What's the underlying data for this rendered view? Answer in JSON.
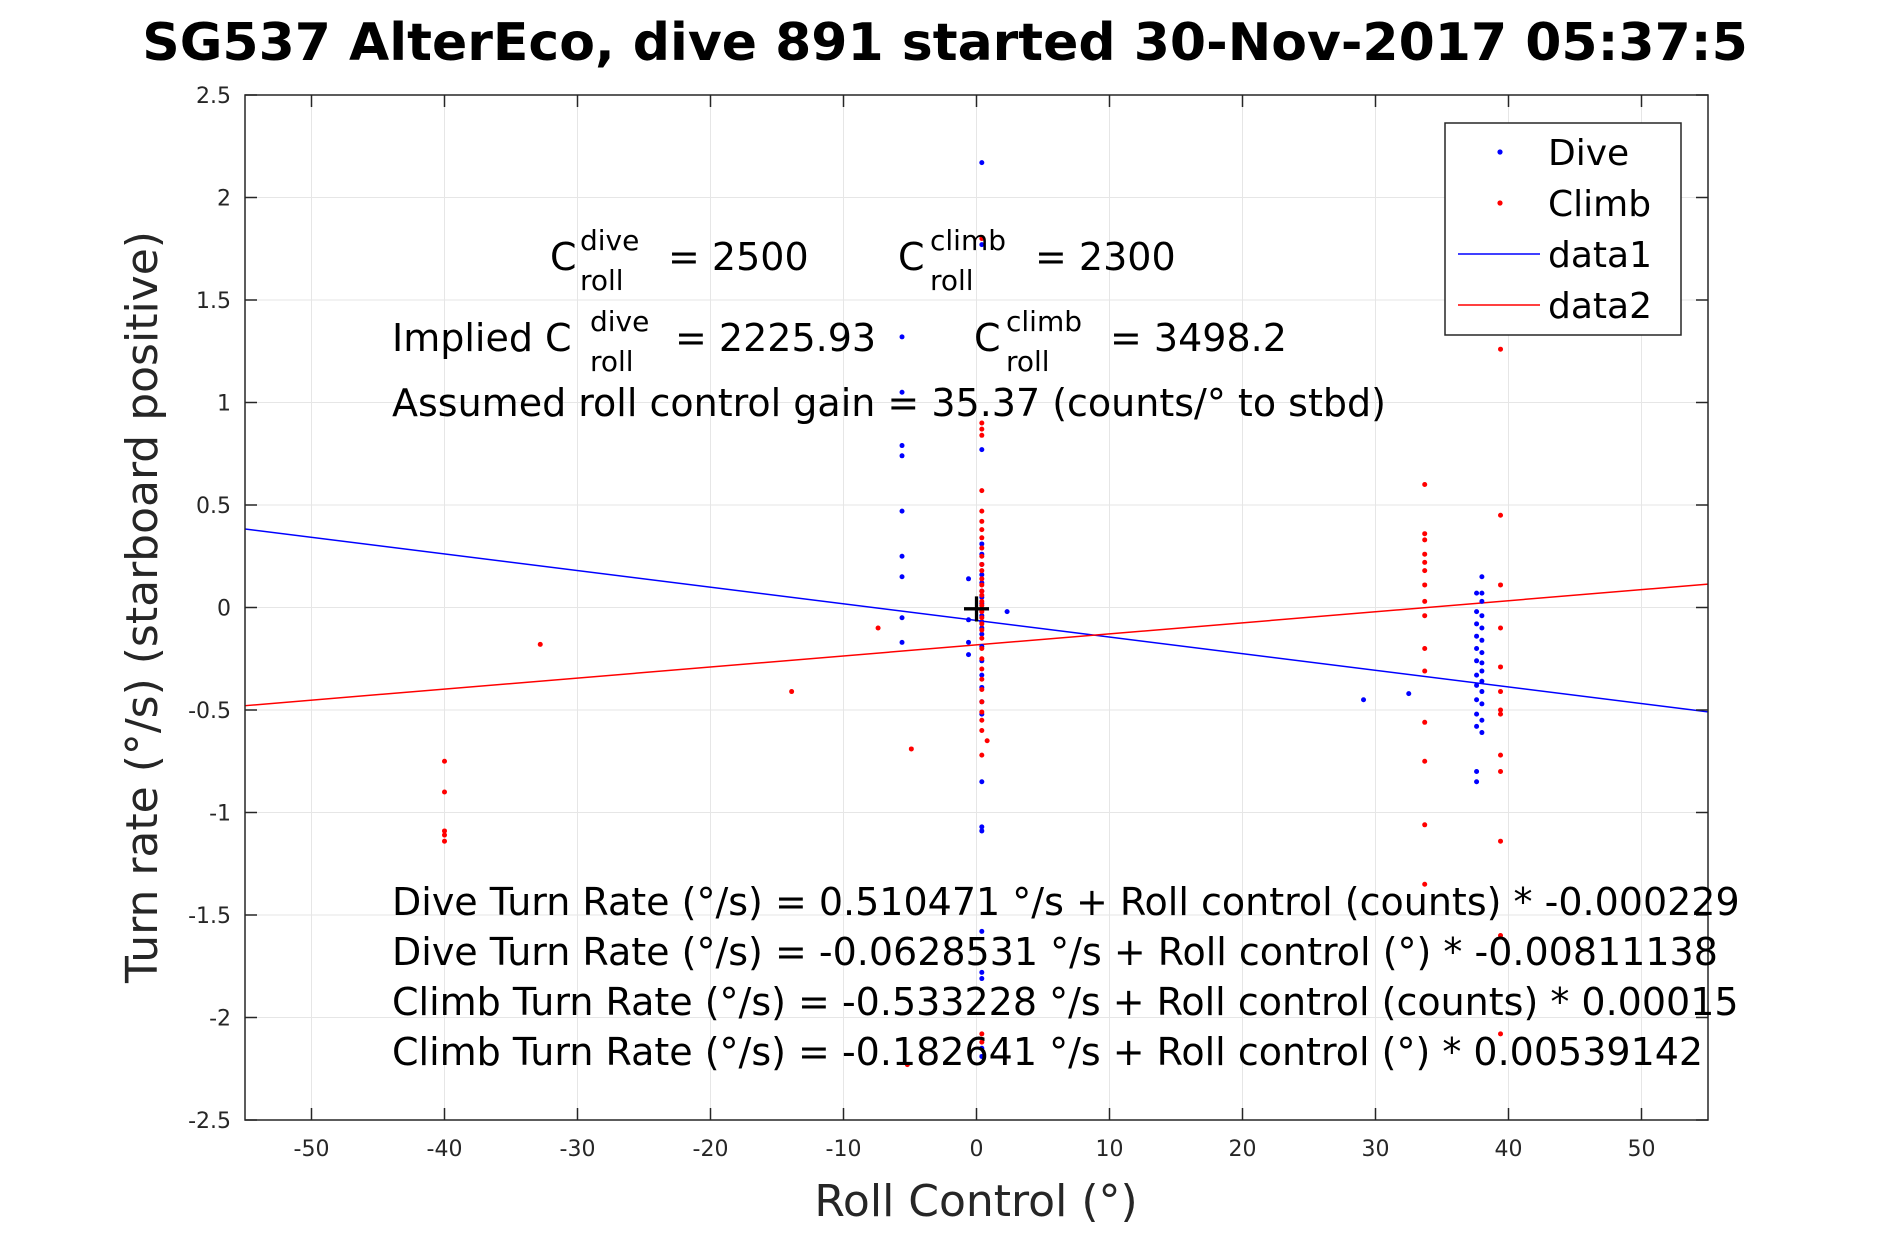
{
  "chart_data": {
    "type": "scatter",
    "title": "SG537 AlterEco, dive 891 started 30-Nov-2017 05:37:5",
    "xlabel": "Roll Control (°)",
    "ylabel": "Turn rate (°/s) (starboard positive)",
    "xlim": [
      -55,
      55
    ],
    "ylim": [
      -2.5,
      2.5
    ],
    "xticks": [
      -50,
      -40,
      -30,
      -20,
      -10,
      0,
      10,
      20,
      30,
      40,
      50
    ],
    "yticks": [
      2.5,
      2,
      1.5,
      1,
      0.5,
      0,
      -0.5,
      -1,
      -1.5,
      -2,
      -2.5
    ],
    "xtick_labels": [
      "-50",
      "-40",
      "-30",
      "-20",
      "-10",
      "0",
      "10",
      "20",
      "30",
      "40",
      "50"
    ],
    "ytick_labels": [
      "2.5",
      "2",
      "1.5",
      "1",
      "0.5",
      "0",
      "-0.5",
      "-1",
      "-1.5",
      "-2",
      "-2.5"
    ],
    "grid": true,
    "legend_position": "top-right",
    "colors": {
      "dive": "#0000ff",
      "climb": "#ff0000",
      "axis": "#262626",
      "grid": "#e6e6e6"
    },
    "series": [
      {
        "name": "Dive",
        "kind": "points",
        "color": "#0000ff",
        "points": [
          [
            0.4,
            2.17
          ],
          [
            -5.6,
            1.32
          ],
          [
            -5.6,
            1.05
          ],
          [
            -5.6,
            0.79
          ],
          [
            -5.6,
            0.74
          ],
          [
            -5.6,
            0.47
          ],
          [
            -5.6,
            0.25
          ],
          [
            -5.6,
            0.15
          ],
          [
            -5.6,
            -0.05
          ],
          [
            -5.6,
            -0.17
          ],
          [
            0.4,
            1.77
          ],
          [
            0.4,
            0.77
          ],
          [
            0.4,
            0.31
          ],
          [
            0.4,
            0.26
          ],
          [
            0.4,
            0.21
          ],
          [
            0.4,
            0.16
          ],
          [
            0.4,
            0.12
          ],
          [
            0.4,
            0.08
          ],
          [
            0.4,
            0.05
          ],
          [
            0.4,
            0.02
          ],
          [
            0.4,
            -0.01
          ],
          [
            0.4,
            -0.04
          ],
          [
            0.4,
            -0.07
          ],
          [
            0.4,
            -0.1
          ],
          [
            0.4,
            -0.13
          ],
          [
            0.4,
            -0.19
          ],
          [
            0.4,
            -0.26
          ],
          [
            0.4,
            -0.33
          ],
          [
            0.4,
            -0.39
          ],
          [
            0.4,
            -0.46
          ],
          [
            0.4,
            -0.52
          ],
          [
            0.4,
            -0.85
          ],
          [
            0.4,
            -1.07
          ],
          [
            0.4,
            -1.09
          ],
          [
            0.4,
            -1.58
          ],
          [
            0.4,
            -1.78
          ],
          [
            0.4,
            -1.81
          ],
          [
            0.4,
            -2.15
          ],
          [
            0.4,
            -2.19
          ],
          [
            -0.6,
            0.14
          ],
          [
            -0.6,
            -0.06
          ],
          [
            -0.6,
            -0.17
          ],
          [
            -0.6,
            -0.23
          ],
          [
            2.3,
            -0.02
          ],
          [
            29.1,
            -0.45
          ],
          [
            32.5,
            -0.42
          ],
          [
            37.6,
            0.07
          ],
          [
            37.6,
            -0.02
          ],
          [
            37.6,
            -0.08
          ],
          [
            37.6,
            -0.14
          ],
          [
            37.6,
            -0.2
          ],
          [
            37.6,
            -0.26
          ],
          [
            37.6,
            -0.33
          ],
          [
            37.6,
            -0.38
          ],
          [
            37.6,
            -0.45
          ],
          [
            37.6,
            -0.52
          ],
          [
            37.6,
            -0.58
          ],
          [
            37.6,
            -0.8
          ],
          [
            37.6,
            -0.85
          ],
          [
            38.0,
            0.15
          ],
          [
            38.0,
            0.07
          ],
          [
            38.0,
            0.03
          ],
          [
            38.0,
            -0.04
          ],
          [
            38.0,
            -0.1
          ],
          [
            38.0,
            -0.16
          ],
          [
            38.0,
            -0.22
          ],
          [
            38.0,
            -0.27
          ],
          [
            38.0,
            -0.31
          ],
          [
            38.0,
            -0.36
          ],
          [
            38.0,
            -0.41
          ],
          [
            38.0,
            -0.47
          ],
          [
            38.0,
            -0.55
          ],
          [
            38.0,
            -0.61
          ]
        ]
      },
      {
        "name": "Climb",
        "kind": "points",
        "color": "#ff0000",
        "points": [
          [
            -40.0,
            -0.75
          ],
          [
            -40.0,
            -0.9
          ],
          [
            -40.0,
            -1.09
          ],
          [
            -40.0,
            -1.11
          ],
          [
            -40.0,
            -1.14
          ],
          [
            -32.8,
            -0.18
          ],
          [
            -13.9,
            -0.41
          ],
          [
            -7.4,
            -0.1
          ],
          [
            -4.9,
            -0.69
          ],
          [
            -5.2,
            -2.23
          ],
          [
            0.4,
            1.8
          ],
          [
            0.4,
            0.9
          ],
          [
            0.4,
            0.87
          ],
          [
            0.4,
            0.84
          ],
          [
            0.4,
            0.57
          ],
          [
            0.4,
            0.47
          ],
          [
            0.4,
            0.42
          ],
          [
            0.4,
            0.38
          ],
          [
            0.4,
            0.34
          ],
          [
            0.4,
            0.29
          ],
          [
            0.4,
            0.25
          ],
          [
            0.4,
            0.21
          ],
          [
            0.4,
            0.18
          ],
          [
            0.4,
            0.14
          ],
          [
            0.4,
            0.11
          ],
          [
            0.4,
            0.08
          ],
          [
            0.4,
            0.06
          ],
          [
            0.4,
            0.03
          ],
          [
            0.4,
            0.01
          ],
          [
            0.4,
            -0.02
          ],
          [
            0.4,
            -0.05
          ],
          [
            0.4,
            -0.08
          ],
          [
            0.4,
            -0.11
          ],
          [
            0.4,
            -0.15
          ],
          [
            0.4,
            -0.2
          ],
          [
            0.4,
            -0.25
          ],
          [
            0.4,
            -0.3
          ],
          [
            0.4,
            -0.35
          ],
          [
            0.4,
            -0.4
          ],
          [
            0.4,
            -0.46
          ],
          [
            0.4,
            -0.51
          ],
          [
            0.4,
            -0.55
          ],
          [
            0.4,
            -0.6
          ],
          [
            0.4,
            -0.72
          ],
          [
            0.8,
            -0.65
          ],
          [
            0.4,
            -2.08
          ],
          [
            0.4,
            -2.12
          ],
          [
            33.7,
            0.6
          ],
          [
            33.7,
            0.36
          ],
          [
            33.7,
            0.33
          ],
          [
            33.7,
            0.26
          ],
          [
            33.7,
            0.22
          ],
          [
            33.7,
            0.18
          ],
          [
            33.7,
            0.11
          ],
          [
            33.7,
            0.03
          ],
          [
            33.7,
            -0.04
          ],
          [
            33.7,
            -0.2
          ],
          [
            33.7,
            -0.31
          ],
          [
            33.7,
            -0.56
          ],
          [
            33.7,
            -0.75
          ],
          [
            33.7,
            -1.06
          ],
          [
            33.7,
            -1.35
          ],
          [
            39.4,
            1.26
          ],
          [
            39.4,
            0.45
          ],
          [
            39.4,
            0.11
          ],
          [
            39.4,
            -0.1
          ],
          [
            39.4,
            -0.29
          ],
          [
            39.4,
            -0.41
          ],
          [
            39.4,
            -0.5
          ],
          [
            39.4,
            -0.52
          ],
          [
            39.4,
            -0.72
          ],
          [
            39.4,
            -0.8
          ],
          [
            39.4,
            -1.14
          ],
          [
            39.4,
            -1.6
          ],
          [
            39.4,
            -2.08
          ]
        ]
      },
      {
        "name": "data1",
        "kind": "line",
        "color": "#0000ff",
        "points": [
          [
            -55,
            0.383
          ],
          [
            55,
            -0.509
          ]
        ]
      },
      {
        "name": "data2",
        "kind": "line",
        "color": "#ff0000",
        "points": [
          [
            -55,
            -0.479
          ],
          [
            55,
            0.114
          ]
        ]
      }
    ],
    "marker": {
      "label": "+",
      "x": 0,
      "y": 0
    },
    "annotations": {
      "c_roll_dive": {
        "base": "C",
        "sup": "dive",
        "sub": "roll",
        "value": "= 2500"
      },
      "c_roll_climb": {
        "base": "C",
        "sup": "climb",
        "sub": "roll",
        "value": "= 2300"
      },
      "implied_prefix": "Implied C",
      "implied_dive": {
        "sup": "dive",
        "sub": "roll",
        "value": "= 2225.93"
      },
      "implied_climb": {
        "base": "C",
        "sup": "climb",
        "sub": "roll",
        "value": "= 3498.2"
      },
      "gain": "Assumed roll control gain = 35.37 (counts/° to stbd)",
      "fit_lines": [
        "Dive Turn Rate (°/s) = 0.510471 °/s + Roll control (counts) * -0.000229",
        "Dive Turn Rate (°/s) = -0.0628531 °/s + Roll control (°) * -0.00811138",
        "Climb Turn Rate (°/s) = -0.533228 °/s + Roll control (counts) * 0.00015",
        "Climb Turn Rate (°/s) = -0.182641 °/s + Roll control (°) * 0.00539142"
      ]
    },
    "legend": [
      "Dive",
      "Climb",
      "data1",
      "data2"
    ]
  }
}
